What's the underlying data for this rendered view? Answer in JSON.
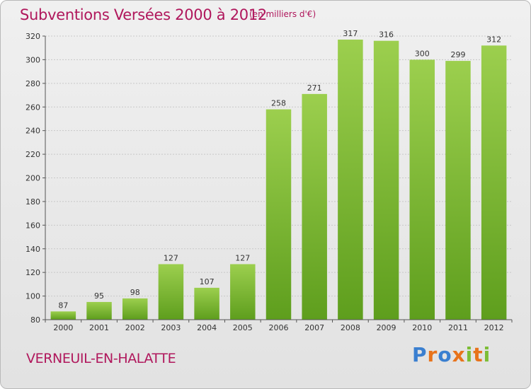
{
  "chart_data": {
    "type": "bar",
    "title": "Subventions Versées 2000 à 2012",
    "subtitle": "(en milliers d'€)",
    "categories": [
      "2000",
      "2001",
      "2002",
      "2003",
      "2004",
      "2005",
      "2006",
      "2007",
      "2008",
      "2009",
      "2010",
      "2011",
      "2012"
    ],
    "values": [
      87,
      95,
      98,
      127,
      107,
      127,
      258,
      271,
      317,
      316,
      300,
      299,
      312
    ],
    "ylim": [
      80,
      320
    ],
    "yticks": [
      80,
      100,
      120,
      140,
      160,
      180,
      200,
      220,
      240,
      260,
      280,
      300,
      320
    ],
    "grid": true,
    "bar_color": "#7cbd35"
  },
  "commune": "VERNEUIL-EN-HALATTE",
  "brand": {
    "letters": [
      "P",
      "r",
      "o",
      "x",
      "i",
      "t",
      "i"
    ],
    "colors": [
      "#3a7fd0",
      "#e8731b",
      "#3a7fd0",
      "#e8731b",
      "#7cbd35",
      "#e8731b",
      "#7cbd35"
    ]
  }
}
